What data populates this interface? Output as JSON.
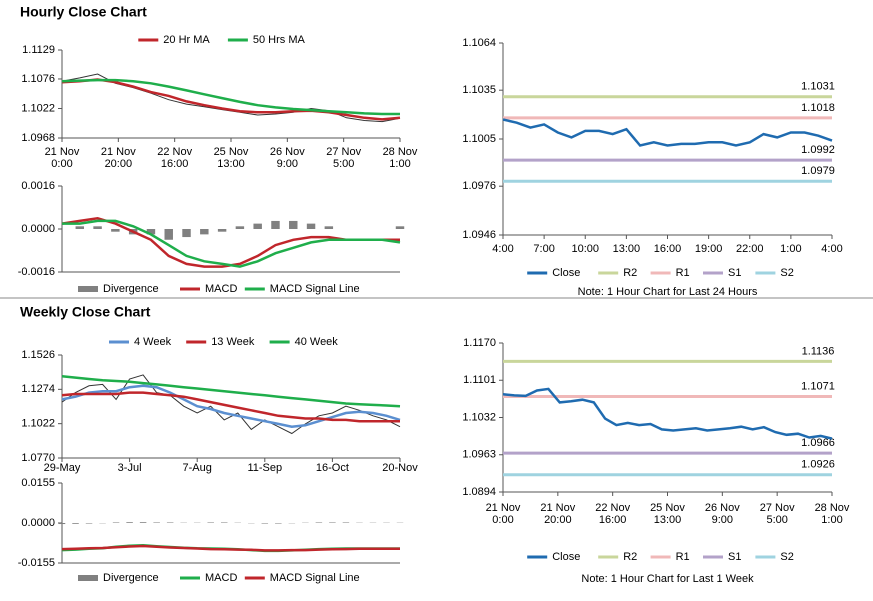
{
  "sections": [
    "Hourly Close Chart",
    "Weekly Close Chart"
  ],
  "chart_data": [
    {
      "type": "line",
      "ylim": [
        1.0968,
        1.1129
      ],
      "yticks": [
        1.0968,
        1.1022,
        1.1076,
        1.1129
      ],
      "x_labels": [
        [
          "21 Nov",
          "0:00"
        ],
        [
          "21 Nov",
          "20:00"
        ],
        [
          "22 Nov",
          "16:00"
        ],
        [
          "25 Nov",
          "13:00"
        ],
        [
          "26 Nov",
          "9:00"
        ],
        [
          "27 Nov",
          "5:00"
        ],
        [
          "28 Nov",
          "1:00"
        ]
      ],
      "color": "#333333",
      "values": [
        1.1072,
        1.1078,
        1.1085,
        1.1068,
        1.106,
        1.105,
        1.1038,
        1.103,
        1.1025,
        1.102,
        1.1015,
        1.101,
        1.1012,
        1.1015,
        1.1022,
        1.1018,
        1.1005,
        1.1,
        1.0998,
        1.1004
      ],
      "series": [
        {
          "name": "20 Hr MA",
          "color": "#c0262b",
          "values": [
            1.107,
            1.1072,
            1.1075,
            1.107,
            1.1062,
            1.1052,
            1.1045,
            1.1035,
            1.1028,
            1.1022,
            1.1017,
            1.1015,
            1.1015,
            1.1017,
            1.1018,
            1.1015,
            1.101,
            1.1005,
            1.1002,
            1.1005
          ]
        },
        {
          "name": "50 Hrs MA",
          "color": "#1fae4b",
          "values": [
            1.1072,
            1.1073,
            1.1074,
            1.1074,
            1.1072,
            1.1068,
            1.1062,
            1.1055,
            1.1048,
            1.1041,
            1.1034,
            1.1028,
            1.1024,
            1.1021,
            1.1019,
            1.1017,
            1.1015,
            1.1013,
            1.1012,
            1.1012
          ]
        }
      ]
    },
    {
      "type": "line",
      "ylim": [
        -0.0016,
        0.0016
      ],
      "yticks": [
        -0.0016,
        {
          "value": 0,
          "label": "0.0000"
        },
        0.0016
      ],
      "series": [
        {
          "name": "Divergence",
          "color": "#808080",
          "type": "bar",
          "values": [
            0,
            0.0001,
            0.0001,
            -0.0001,
            -0.0002,
            -0.0002,
            -0.0004,
            -0.0003,
            -0.0002,
            -0.0001,
            0.0001,
            0.0002,
            0.0003,
            0.0003,
            0.0002,
            0.0001,
            0,
            0,
            0,
            0.0001
          ]
        },
        {
          "name": "MACD",
          "color": "#c0262b",
          "values": [
            0.0002,
            0.0003,
            0.0004,
            0.0002,
            -0.0001,
            -0.0004,
            -0.001,
            -0.0013,
            -0.0014,
            -0.0014,
            -0.0013,
            -0.001,
            -0.0006,
            -0.0004,
            -0.0003,
            -0.0003,
            -0.0004,
            -0.0004,
            -0.0004,
            -0.0004
          ]
        },
        {
          "name": "MACD Signal Line",
          "color": "#1fae4b",
          "values": [
            0.0002,
            0.0002,
            0.0003,
            0.0003,
            0.0001,
            -0.0002,
            -0.0006,
            -0.001,
            -0.0012,
            -0.0013,
            -0.0014,
            -0.0012,
            -0.0009,
            -0.0007,
            -0.0005,
            -0.0004,
            -0.0004,
            -0.0004,
            -0.0004,
            -0.0005
          ]
        }
      ]
    },
    {
      "type": "line",
      "ylim": [
        1.0946,
        1.1064
      ],
      "yticks": [
        1.0946,
        1.0976,
        1.1005,
        1.1035,
        1.1064
      ],
      "x_labels": [
        [
          "4:00"
        ],
        [
          "7:00"
        ],
        [
          "10:00"
        ],
        [
          "13:00"
        ],
        [
          "16:00"
        ],
        [
          "19:00"
        ],
        [
          "22:00"
        ],
        [
          "1:00"
        ],
        [
          "4:00"
        ]
      ],
      "series": [
        {
          "name": "Close",
          "color": "#1f6bb0",
          "values": [
            1.1017,
            1.1015,
            1.1012,
            1.1014,
            1.1009,
            1.1006,
            1.101,
            1.101,
            1.1008,
            1.1011,
            1.1001,
            1.1003,
            1.1001,
            1.1002,
            1.1002,
            1.1003,
            1.1003,
            1.1001,
            1.1003,
            1.1008,
            1.1006,
            1.1009,
            1.1009,
            1.1007,
            1.1004
          ]
        }
      ],
      "levels": [
        {
          "name": "R2",
          "color": "#c9d69b",
          "value": 1.1031
        },
        {
          "name": "R1",
          "color": "#f0b8b8",
          "value": 1.1018
        },
        {
          "name": "S1",
          "color": "#b3a2c9",
          "value": 1.0992
        },
        {
          "name": "S2",
          "color": "#9fd3e0",
          "value": 1.0979
        }
      ],
      "note": "Note: 1 Hour Chart for Last 24 Hours"
    },
    {
      "type": "line",
      "ylim": [
        1.077,
        1.1526
      ],
      "yticks": [
        {
          "value": 1.077,
          "label": "1.0770"
        },
        1.1022,
        1.1274,
        1.1526
      ],
      "x_labels": [
        [
          "29-May"
        ],
        [
          "3-Jul"
        ],
        [
          "7-Aug"
        ],
        [
          "11-Sep"
        ],
        [
          "16-Oct"
        ],
        [
          "20-Nov"
        ]
      ],
      "color": "#333333",
      "values": [
        1.118,
        1.125,
        1.13,
        1.131,
        1.12,
        1.135,
        1.138,
        1.125,
        1.123,
        1.115,
        1.11,
        1.115,
        1.105,
        1.11,
        1.098,
        1.105,
        1.1,
        1.095,
        1.102,
        1.108,
        1.11,
        1.115,
        1.112,
        1.108,
        1.105,
        1.1
      ],
      "series": [
        {
          "name": "4 Week",
          "color": "#5b8fd0",
          "values": [
            1.12,
            1.122,
            1.125,
            1.126,
            1.126,
            1.129,
            1.13,
            1.129,
            1.125,
            1.12,
            1.115,
            1.113,
            1.11,
            1.108,
            1.106,
            1.104,
            1.102,
            1.1,
            1.101,
            1.104,
            1.107,
            1.11,
            1.111,
            1.11,
            1.108,
            1.105
          ]
        },
        {
          "name": "13 Week",
          "color": "#c0262b",
          "values": [
            1.123,
            1.124,
            1.124,
            1.124,
            1.124,
            1.125,
            1.125,
            1.124,
            1.123,
            1.122,
            1.12,
            1.118,
            1.116,
            1.114,
            1.112,
            1.11,
            1.108,
            1.107,
            1.106,
            1.106,
            1.105,
            1.105,
            1.104,
            1.104,
            1.104,
            1.104
          ]
        },
        {
          "name": "40 Week",
          "color": "#1fae4b",
          "values": [
            1.137,
            1.136,
            1.135,
            1.134,
            1.1335,
            1.133,
            1.132,
            1.131,
            1.13,
            1.129,
            1.128,
            1.127,
            1.126,
            1.125,
            1.124,
            1.123,
            1.122,
            1.121,
            1.12,
            1.119,
            1.118,
            1.117,
            1.1165,
            1.116,
            1.1155,
            1.115
          ]
        }
      ]
    },
    {
      "type": "line",
      "ylim": [
        -0.0155,
        0.0155
      ],
      "yticks": [
        -0.0155,
        {
          "value": 0,
          "label": "0.0000"
        },
        0.0155
      ],
      "series": [
        {
          "name": "Divergence",
          "color": "#808080",
          "type": "bar",
          "values": [
            -0.0004,
            -0.0003,
            -0.0002,
            -0.0001,
            0.0002,
            0.0003,
            0.0003,
            0.0002,
            0.0002,
            0.0001,
            0.0001,
            0.0002,
            0.0002,
            0.0001,
            -0.0001,
            -0.0002,
            -0.0002,
            -0.0001,
            0.0001,
            0.0002,
            0.0002,
            0.0002,
            0.0001,
            0.0001,
            0.0001,
            0.0001
          ]
        },
        {
          "name": "MACD",
          "color": "#1fae4b",
          "values": [
            -0.0105,
            -0.0103,
            -0.01,
            -0.0098,
            -0.0092,
            -0.0088,
            -0.0086,
            -0.009,
            -0.0093,
            -0.0096,
            -0.0098,
            -0.0099,
            -0.01,
            -0.0102,
            -0.0105,
            -0.0108,
            -0.0108,
            -0.0106,
            -0.0104,
            -0.0101,
            -0.01,
            -0.0099,
            -0.0099,
            -0.0099,
            -0.0099,
            -0.0099
          ]
        },
        {
          "name": "MACD Signal Line",
          "color": "#c0262b",
          "values": [
            -0.0101,
            -0.01,
            -0.0098,
            -0.0097,
            -0.0094,
            -0.0091,
            -0.0089,
            -0.0092,
            -0.0095,
            -0.0097,
            -0.0099,
            -0.0101,
            -0.0102,
            -0.0103,
            -0.0104,
            -0.0106,
            -0.0106,
            -0.0105,
            -0.0105,
            -0.0103,
            -0.0102,
            -0.0101,
            -0.01,
            -0.01,
            -0.01,
            -0.01
          ]
        }
      ]
    },
    {
      "type": "line",
      "ylim": [
        1.0894,
        1.117
      ],
      "yticks": [
        1.0894,
        1.0963,
        1.1032,
        1.1101,
        {
          "value": 1.117,
          "label": "1.1170"
        }
      ],
      "x_labels": [
        [
          "21 Nov",
          "0:00"
        ],
        [
          "21 Nov",
          "20:00"
        ],
        [
          "22 Nov",
          "16:00"
        ],
        [
          "25 Nov",
          "13:00"
        ],
        [
          "26 Nov",
          "9:00"
        ],
        [
          "27 Nov",
          "5:00"
        ],
        [
          "28 Nov",
          "1:00"
        ]
      ],
      "series": [
        {
          "name": "Close",
          "color": "#1f6bb0",
          "values": [
            1.1075,
            1.1073,
            1.1072,
            1.1082,
            1.1085,
            1.106,
            1.1062,
            1.1065,
            1.106,
            1.103,
            1.1018,
            1.1022,
            1.1018,
            1.102,
            1.101,
            1.1008,
            1.101,
            1.1012,
            1.1008,
            1.101,
            1.1012,
            1.1015,
            1.101,
            1.1014,
            1.1005,
            1.1,
            1.1002,
            1.0995,
            1.0998,
            1.0993
          ]
        }
      ],
      "levels": [
        {
          "name": "R2",
          "color": "#c9d69b",
          "value": 1.1136
        },
        {
          "name": "R1",
          "color": "#f0b8b8",
          "value": 1.1071
        },
        {
          "name": "S1",
          "color": "#b3a2c9",
          "value": 1.0966
        },
        {
          "name": "S2",
          "color": "#9fd3e0",
          "value": 1.0926
        }
      ],
      "note": "Note: 1 Hour Chart for Last 1 Week"
    }
  ]
}
